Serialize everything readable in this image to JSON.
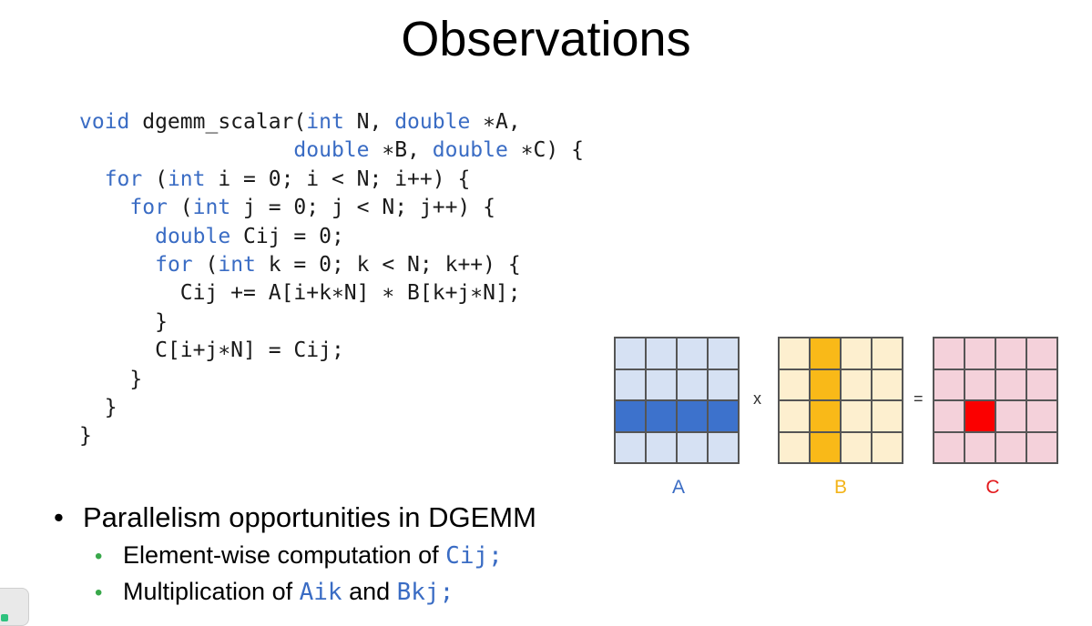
{
  "title": "Observations",
  "code_lines": [
    [
      {
        "t": "void",
        "k": 1
      },
      {
        "t": " dgemm_scalar("
      },
      {
        "t": "int",
        "k": 1
      },
      {
        "t": " N, "
      },
      {
        "t": "double",
        "k": 1
      },
      {
        "t": " ∗A,"
      }
    ],
    [
      {
        "t": "                 "
      },
      {
        "t": "double",
        "k": 1
      },
      {
        "t": " ∗B, "
      },
      {
        "t": "double",
        "k": 1
      },
      {
        "t": " ∗C) {"
      }
    ],
    [
      {
        "t": "  "
      },
      {
        "t": "for",
        "k": 1
      },
      {
        "t": " ("
      },
      {
        "t": "int",
        "k": 1
      },
      {
        "t": " i = 0; i < N; i++) {"
      }
    ],
    [
      {
        "t": "    "
      },
      {
        "t": "for",
        "k": 1
      },
      {
        "t": " ("
      },
      {
        "t": "int",
        "k": 1
      },
      {
        "t": " j = 0; j < N; j++) {"
      }
    ],
    [
      {
        "t": "      "
      },
      {
        "t": "double",
        "k": 1
      },
      {
        "t": " Cij = 0;"
      }
    ],
    [
      {
        "t": "      "
      },
      {
        "t": "for",
        "k": 1
      },
      {
        "t": " ("
      },
      {
        "t": "int",
        "k": 1
      },
      {
        "t": " k = 0; k < N; k++) {"
      }
    ],
    [
      {
        "t": "        Cij += A[i+k∗N] ∗ B[k+j∗N];"
      }
    ],
    [
      {
        "t": "      }"
      }
    ],
    [
      {
        "t": "      C[i+j∗N] = Cij;"
      }
    ],
    [
      {
        "t": "    }"
      }
    ],
    [
      {
        "t": "  }"
      }
    ],
    [
      {
        "t": "}"
      }
    ]
  ],
  "matrices": {
    "a": {
      "label": "A",
      "label_color": "#3a6cc4",
      "base": "#d6e1f3",
      "highlight": "#3d72cc",
      "highlight_cells": [
        8,
        9,
        10,
        11
      ]
    },
    "b": {
      "label": "B",
      "label_color": "#f3b41a",
      "base": "#fdefcf",
      "highlight": "#f9b918",
      "highlight_cells": [
        1,
        5,
        9,
        13
      ]
    },
    "c": {
      "label": "C",
      "label_color": "#e3191c",
      "base": "#f4d1da",
      "highlight": "#fb0000",
      "highlight_cells": [
        9
      ]
    },
    "times": "x",
    "equals": "="
  },
  "bullets": {
    "main": "Parallelism opportunities in DGEMM",
    "sub1_text": "Element-wise computation of ",
    "sub1_code": "Cij;",
    "sub2_text_a": "Multiplication of ",
    "sub2_code_a": "Aik",
    "sub2_text_b": " and ",
    "sub2_code_b": "Bkj;"
  },
  "bullet_glyph": "•"
}
